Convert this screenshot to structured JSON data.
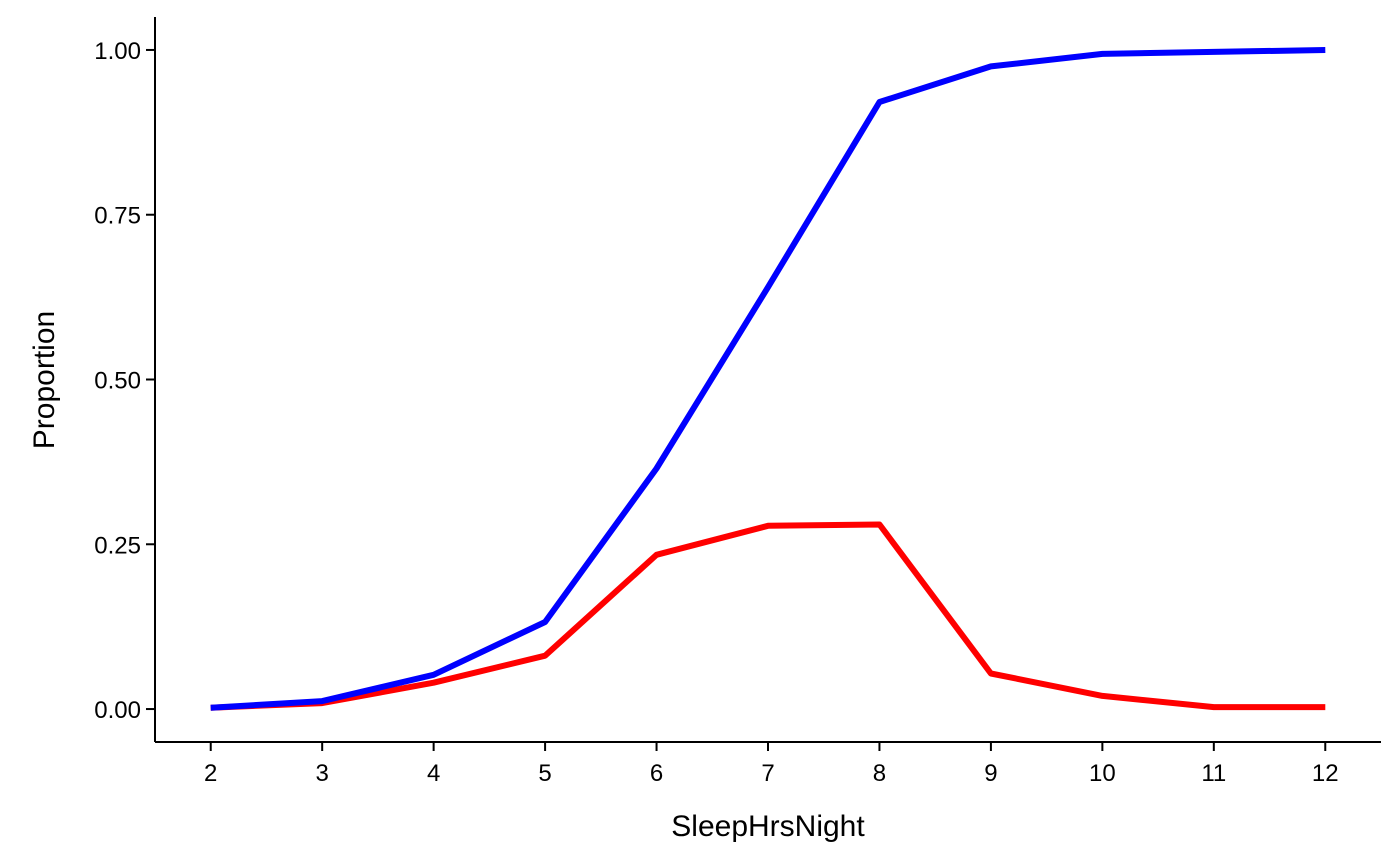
{
  "chart_data": {
    "type": "line",
    "xlabel": "SleepHrsNight",
    "ylabel": "Proportion",
    "x": [
      2,
      3,
      4,
      5,
      6,
      7,
      8,
      9,
      10,
      11,
      12
    ],
    "xlim": [
      1.5,
      12.5
    ],
    "ylim": [
      -0.05,
      1.05
    ],
    "x_ticks": [
      "2",
      "3",
      "4",
      "5",
      "6",
      "7",
      "8",
      "9",
      "10",
      "11",
      "12"
    ],
    "y_ticks": [
      "0.00",
      "0.25",
      "0.50",
      "0.75",
      "1.00"
    ],
    "grid": false,
    "series": [
      {
        "color": "#0000FF",
        "values": [
          0.002,
          0.012,
          0.052,
          0.132,
          0.365,
          0.64,
          0.921,
          0.975,
          0.994,
          0.997,
          1.0
        ]
      },
      {
        "color": "#FF0000",
        "values": [
          0.002,
          0.009,
          0.04,
          0.081,
          0.234,
          0.278,
          0.28,
          0.054,
          0.02,
          0.003,
          0.003
        ]
      }
    ]
  }
}
